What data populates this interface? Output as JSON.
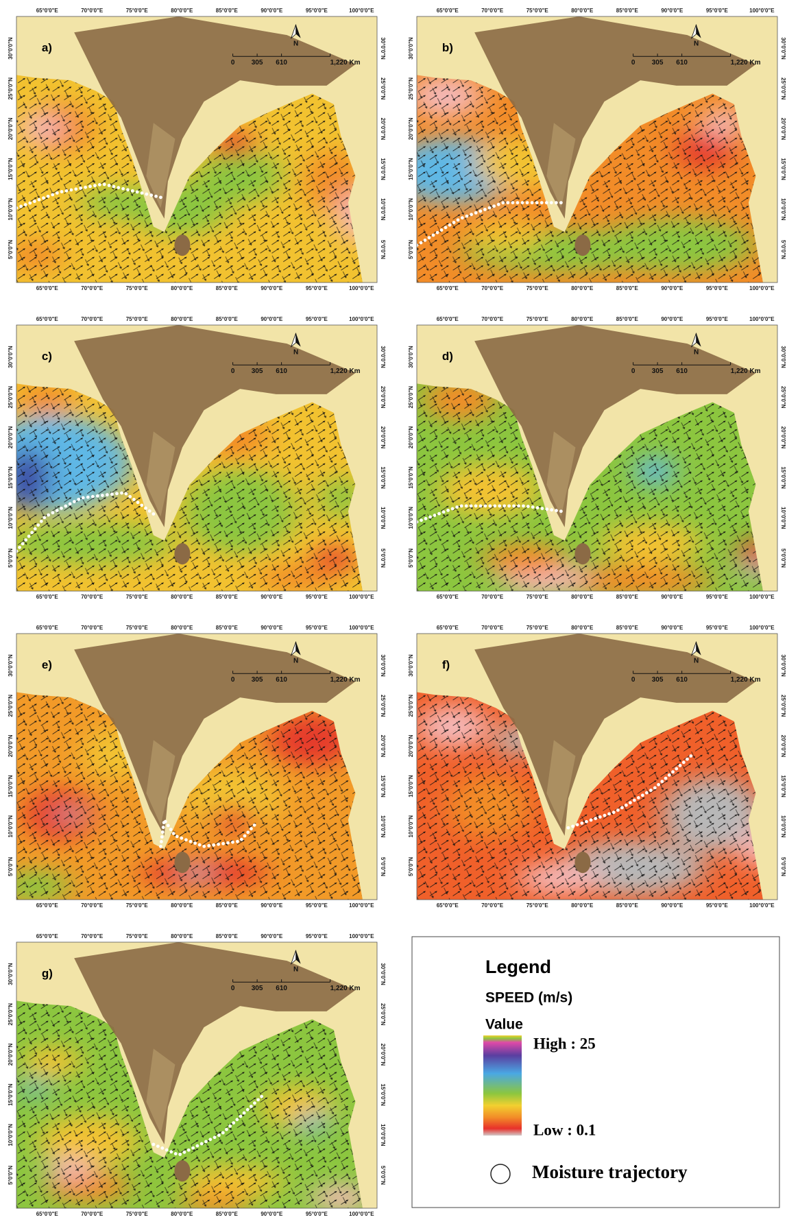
{
  "axes": {
    "lon_labels": [
      "65°0'0\"E",
      "70°0'0\"E",
      "75°0'0\"E",
      "80°0'0\"E",
      "85°0'0\"E",
      "90°0'0\"E",
      "95°0'0\"E",
      "100°0'0\"E"
    ],
    "lat_labels": [
      "30°0'0\"N",
      "25°0'0\"N",
      "20°0'0\"N",
      "15°0'0\"N",
      "10°0'0\"N",
      "5°0'0\"N"
    ]
  },
  "panels": [
    {
      "label": "a)"
    },
    {
      "label": "b)"
    },
    {
      "label": "c)"
    },
    {
      "label": "d)"
    },
    {
      "label": "e)"
    },
    {
      "label": "f)"
    },
    {
      "label": "g)"
    }
  ],
  "scale_bar": {
    "ticks": [
      "0",
      "305",
      "610",
      "1,220 Km"
    ],
    "north": "N"
  },
  "legend": {
    "title": "Legend",
    "field": "SPEED (m/s)",
    "subtitle": "Value",
    "high": "High : 25",
    "low": "Low : 0.1",
    "trajectory": "Moisture trajectory"
  }
}
